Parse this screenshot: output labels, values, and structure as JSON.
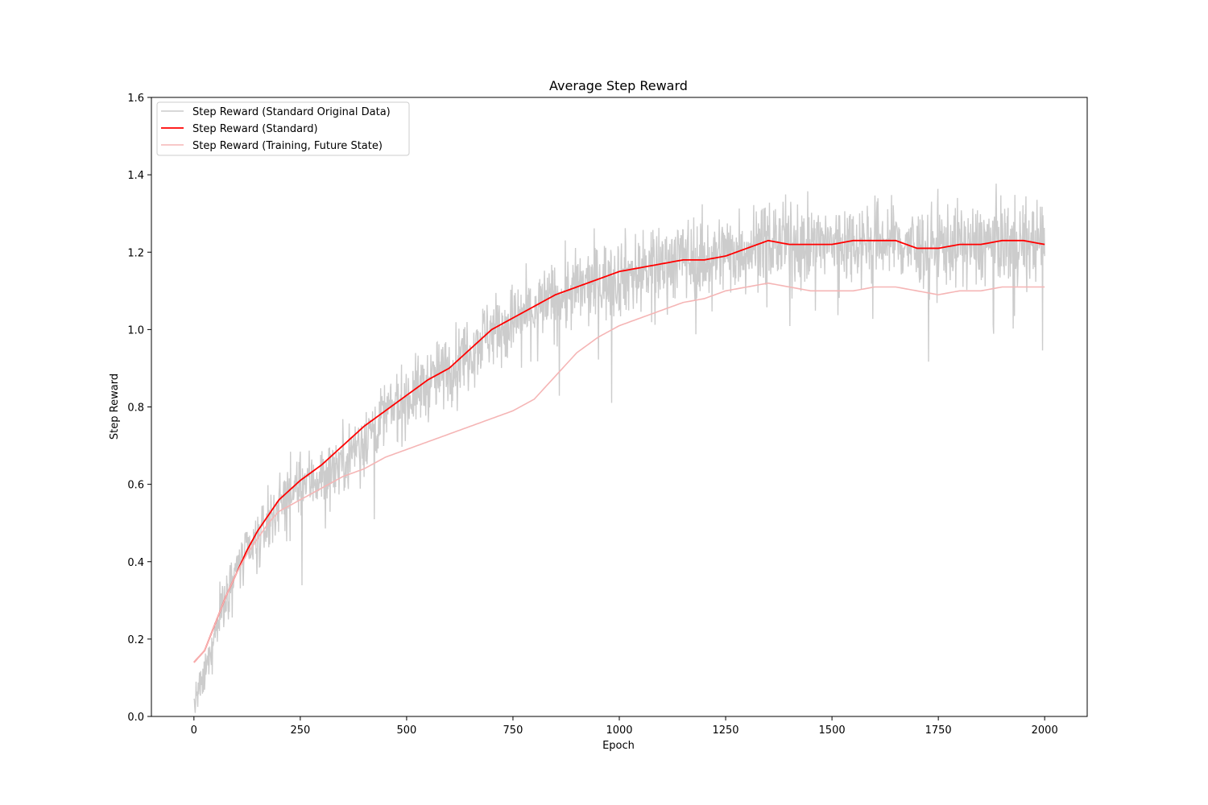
{
  "chart_data": {
    "type": "line",
    "title": "Average Step Reward",
    "xlabel": "Epoch",
    "ylabel": "Step Reward",
    "xlim": [
      -100,
      2100
    ],
    "ylim": [
      0.0,
      1.6
    ],
    "xticks": [
      0,
      250,
      500,
      750,
      1000,
      1250,
      1500,
      1750,
      2000
    ],
    "xtick_labels": [
      "0",
      "250",
      "500",
      "750",
      "1000",
      "1250",
      "1500",
      "1750",
      "2000"
    ],
    "yticks": [
      0.0,
      0.2,
      0.4,
      0.6,
      0.8,
      1.0,
      1.2,
      1.4,
      1.6
    ],
    "ytick_labels": [
      "0.0",
      "0.2",
      "0.4",
      "0.6",
      "0.8",
      "1.0",
      "1.2",
      "1.4",
      "1.6"
    ],
    "grid": false,
    "legend_position": "top-left",
    "series": [
      {
        "name": "Step Reward (Standard Original Data)",
        "color": "#cccccc",
        "style": "noisy-raw",
        "x": [
          0,
          25,
          50,
          75,
          100,
          150,
          200,
          250,
          300,
          350,
          400,
          450,
          500,
          550,
          600,
          650,
          700,
          750,
          800,
          850,
          900,
          950,
          1000,
          1050,
          1100,
          1150,
          1200,
          1250,
          1300,
          1350,
          1400,
          1450,
          1500,
          1550,
          1600,
          1650,
          1700,
          1750,
          1800,
          1850,
          1900,
          1950,
          2000
        ],
        "y": [
          0.03,
          0.1,
          0.22,
          0.32,
          0.38,
          0.45,
          0.55,
          0.6,
          0.62,
          0.66,
          0.72,
          0.78,
          0.82,
          0.86,
          0.9,
          0.95,
          1.0,
          1.02,
          1.05,
          1.08,
          1.1,
          1.12,
          1.14,
          1.15,
          1.17,
          1.19,
          1.18,
          1.2,
          1.21,
          1.23,
          1.22,
          1.22,
          1.22,
          1.23,
          1.23,
          1.23,
          1.21,
          1.22,
          1.22,
          1.22,
          1.23,
          1.23,
          1.22
        ]
      },
      {
        "name": "Step Reward (Standard)",
        "color": "#ff0000",
        "style": "line",
        "x": [
          0,
          25,
          50,
          75,
          100,
          125,
          150,
          175,
          200,
          250,
          300,
          350,
          400,
          450,
          500,
          550,
          600,
          650,
          700,
          750,
          800,
          850,
          900,
          950,
          1000,
          1050,
          1100,
          1150,
          1200,
          1250,
          1300,
          1350,
          1400,
          1450,
          1500,
          1550,
          1600,
          1650,
          1700,
          1750,
          1800,
          1850,
          1900,
          1950,
          2000
        ],
        "y": [
          0.14,
          0.17,
          0.24,
          0.31,
          0.37,
          0.43,
          0.48,
          0.52,
          0.56,
          0.61,
          0.65,
          0.7,
          0.75,
          0.79,
          0.83,
          0.87,
          0.9,
          0.95,
          1.0,
          1.03,
          1.06,
          1.09,
          1.11,
          1.13,
          1.15,
          1.16,
          1.17,
          1.18,
          1.18,
          1.19,
          1.21,
          1.23,
          1.22,
          1.22,
          1.22,
          1.23,
          1.23,
          1.23,
          1.21,
          1.21,
          1.22,
          1.22,
          1.23,
          1.23,
          1.22
        ]
      },
      {
        "name": "Step Reward (Training, Future State)",
        "color": "#f5b5b5",
        "style": "line",
        "x": [
          0,
          25,
          50,
          75,
          100,
          125,
          150,
          175,
          200,
          250,
          300,
          350,
          400,
          450,
          500,
          550,
          600,
          650,
          700,
          750,
          800,
          850,
          900,
          950,
          1000,
          1050,
          1100,
          1150,
          1200,
          1250,
          1300,
          1350,
          1400,
          1450,
          1500,
          1550,
          1600,
          1650,
          1700,
          1750,
          1800,
          1850,
          1900,
          1950,
          2000
        ],
        "y": [
          0.14,
          0.17,
          0.24,
          0.31,
          0.37,
          0.42,
          0.46,
          0.5,
          0.53,
          0.56,
          0.59,
          0.62,
          0.64,
          0.67,
          0.69,
          0.71,
          0.73,
          0.75,
          0.77,
          0.79,
          0.82,
          0.88,
          0.94,
          0.98,
          1.01,
          1.03,
          1.05,
          1.07,
          1.08,
          1.1,
          1.11,
          1.12,
          1.11,
          1.1,
          1.1,
          1.1,
          1.11,
          1.11,
          1.1,
          1.09,
          1.1,
          1.1,
          1.11,
          1.11,
          1.11
        ]
      }
    ]
  }
}
